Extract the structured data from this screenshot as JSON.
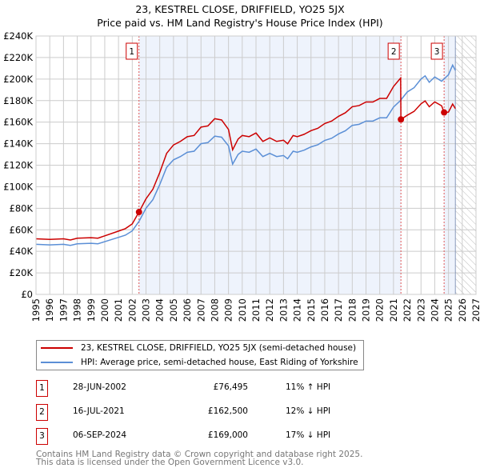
{
  "chart_data": {
    "type": "line",
    "title": "23, KESTREL CLOSE, DRIFFIELD, YO25 5JX",
    "subtitle": "Price paid vs. HM Land Registry's House Price Index (HPI)",
    "xlim": [
      1995,
      2027
    ],
    "ylim": [
      0,
      240000
    ],
    "yticks": [
      0,
      20000,
      40000,
      60000,
      80000,
      100000,
      120000,
      140000,
      160000,
      180000,
      200000,
      220000,
      240000
    ],
    "ytick_labels": [
      "£0",
      "£20K",
      "£40K",
      "£60K",
      "£80K",
      "£100K",
      "£120K",
      "£140K",
      "£160K",
      "£180K",
      "£200K",
      "£220K",
      "£240K"
    ],
    "xticks": [
      "1995",
      "1996",
      "1997",
      "1998",
      "1999",
      "2000",
      "2001",
      "2002",
      "2003",
      "2004",
      "2005",
      "2006",
      "2007",
      "2008",
      "2009",
      "2010",
      "2011",
      "2012",
      "2013",
      "2014",
      "2015",
      "2016",
      "2017",
      "2018",
      "2019",
      "2020",
      "2021",
      "2022",
      "2023",
      "2024",
      "2025",
      "2026",
      "2027"
    ],
    "grid": true,
    "forecast_start": 2025.5,
    "series": [
      {
        "name": "23, KESTREL CLOSE, DRIFFIELD, YO25 5JX (semi-detached house)",
        "color": "#cc0000",
        "x": [
          1995,
          1996,
          1997,
          1997.5,
          1998,
          1999,
          1999.5,
          2000,
          2001,
          2001.5,
          2002,
          2002.49,
          2003,
          2003.5,
          2004,
          2004.5,
          2005,
          2005.5,
          2006,
          2006.5,
          2007,
          2007.5,
          2008,
          2008.5,
          2009,
          2009.3,
          2009.7,
          2010,
          2010.5,
          2011,
          2011.5,
          2012,
          2012.5,
          2013,
          2013.3,
          2013.7,
          2014,
          2014.5,
          2015,
          2015.5,
          2016,
          2016.5,
          2017,
          2017.5,
          2018,
          2018.5,
          2019,
          2019.5,
          2020,
          2020.5,
          2021,
          2021.52,
          2021.54,
          2022,
          2022.5,
          2023,
          2023.3,
          2023.6,
          2024,
          2024.5,
          2024.68,
          2025,
          2025.3,
          2025.5
        ],
        "y": [
          51600,
          51100,
          51600,
          50500,
          52200,
          52700,
          52200,
          54400,
          58800,
          61100,
          65500,
          76495,
          88800,
          97700,
          113200,
          131000,
          138800,
          142100,
          146500,
          147600,
          155400,
          156500,
          163200,
          162000,
          153200,
          134300,
          144300,
          147600,
          146500,
          149900,
          142100,
          145400,
          142100,
          143200,
          139900,
          147600,
          146500,
          148700,
          152100,
          154300,
          158700,
          161000,
          165400,
          168700,
          174300,
          175400,
          178700,
          178700,
          182000,
          182000,
          193100,
          201000,
          162500,
          166400,
          170000,
          177000,
          179700,
          174300,
          178800,
          175200,
          169000,
          169300,
          176800,
          172600
        ]
      },
      {
        "name": "HPI: Average price, semi-detached house, East Riding of Yorkshire",
        "color": "#5b8fd6",
        "x": [
          1995,
          1996,
          1997,
          1997.5,
          1998,
          1999,
          1999.5,
          2000,
          2001,
          2001.5,
          2002,
          2002.5,
          2003,
          2003.5,
          2004,
          2004.5,
          2005,
          2005.5,
          2006,
          2006.5,
          2007,
          2007.5,
          2008,
          2008.5,
          2009,
          2009.3,
          2009.7,
          2010,
          2010.5,
          2011,
          2011.5,
          2012,
          2012.5,
          2013,
          2013.3,
          2013.7,
          2014,
          2014.5,
          2015,
          2015.5,
          2016,
          2016.5,
          2017,
          2017.5,
          2018,
          2018.5,
          2019,
          2019.5,
          2020,
          2020.5,
          2021,
          2021.5,
          2022,
          2022.5,
          2023,
          2023.3,
          2023.6,
          2024,
          2024.5,
          2025,
          2025.3,
          2025.5
        ],
        "y": [
          46500,
          46000,
          46500,
          45500,
          47000,
          47500,
          47000,
          49000,
          53000,
          55000,
          59000,
          68000,
          80000,
          88000,
          102000,
          118000,
          125000,
          128000,
          132000,
          133000,
          140000,
          141000,
          147000,
          146000,
          138000,
          121000,
          130000,
          133000,
          132000,
          135000,
          128000,
          131000,
          128000,
          129000,
          126000,
          133000,
          132000,
          134000,
          137000,
          139000,
          143000,
          145000,
          149000,
          152000,
          157000,
          158000,
          161000,
          161000,
          164000,
          164000,
          174000,
          180000,
          188000,
          192000,
          200000,
          203000,
          197000,
          202000,
          198000,
          204000,
          213000,
          208000
        ]
      }
    ],
    "sales": [
      {
        "id": "1",
        "x": 2002.49,
        "y": 76495,
        "date": "28-JUN-2002",
        "price": "£76,495",
        "hpi": "11% ↑ HPI"
      },
      {
        "id": "2",
        "x": 2021.54,
        "y": 162500,
        "date": "16-JUL-2021",
        "price": "£162,500",
        "hpi": "12% ↓ HPI"
      },
      {
        "id": "3",
        "x": 2024.68,
        "y": 169000,
        "date": "06-SEP-2024",
        "price": "£169,000",
        "hpi": "17% ↓ HPI"
      }
    ]
  },
  "footer": {
    "line1": "Contains HM Land Registry data © Crown copyright and database right 2025.",
    "line2": "This data is licensed under the Open Government Licence v3.0."
  }
}
